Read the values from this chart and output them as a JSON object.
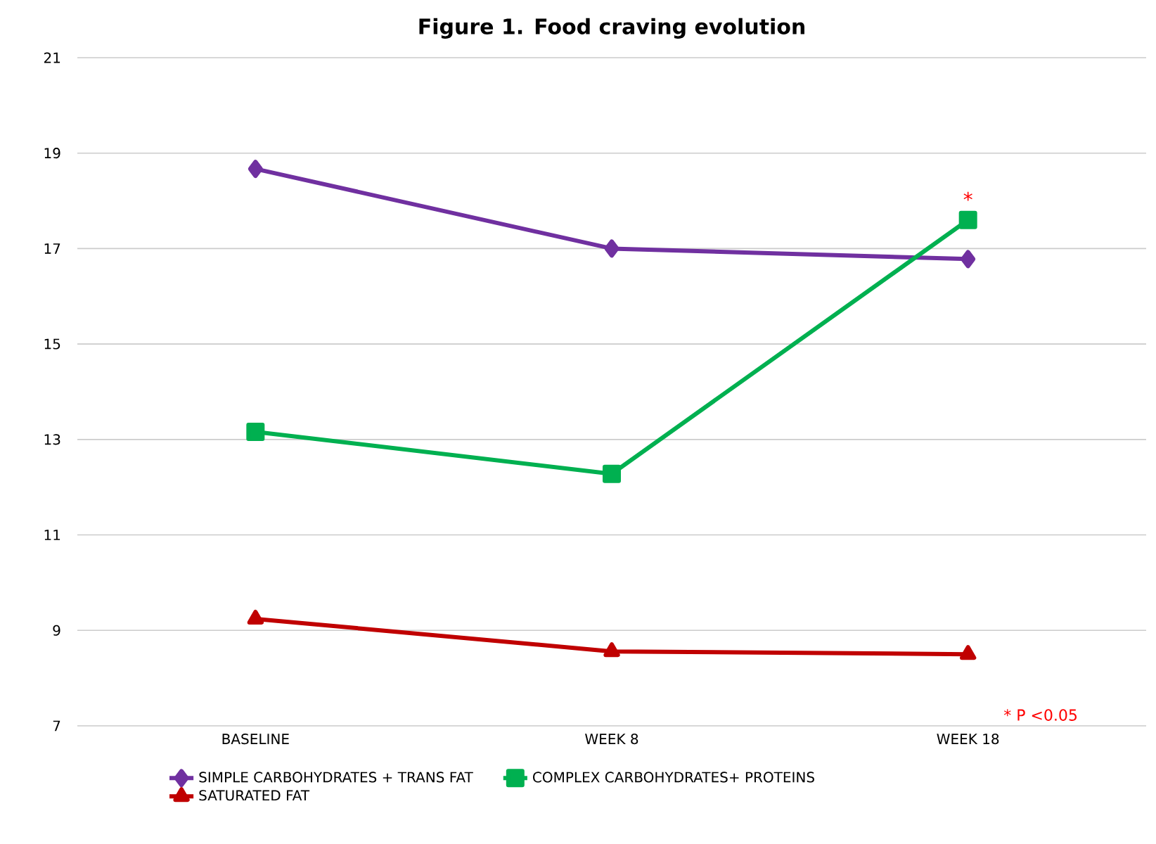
{
  "chart_data": {
    "type": "line",
    "title": "Figure 1. Food craving evolution",
    "categories": [
      "BASELINE",
      "WEEK 8",
      "WEEK 18"
    ],
    "series": [
      {
        "name": "SIMPLE CARBOHYDRATES + TRANS FAT",
        "color": "#7030a0",
        "marker": "diamond",
        "values": [
          18.67,
          17.0,
          16.78
        ]
      },
      {
        "name": "COMPLEX CARBOHYDRATES+ PROTEINS",
        "color": "#00b050",
        "marker": "square",
        "values": [
          13.16,
          12.28,
          17.6
        ]
      },
      {
        "name": "SATURATED FAT",
        "color": "#c00000",
        "marker": "triangle",
        "values": [
          9.24,
          8.56,
          8.5
        ]
      }
    ],
    "ylim": [
      7,
      21
    ],
    "yticks": [
      7,
      9,
      11,
      13,
      15,
      17,
      19,
      21
    ],
    "grid": "y",
    "legend": "bottom",
    "annotations": [
      {
        "text": "*",
        "x": "WEEK 18",
        "y": 17.6
      },
      "* P <0.05"
    ]
  }
}
